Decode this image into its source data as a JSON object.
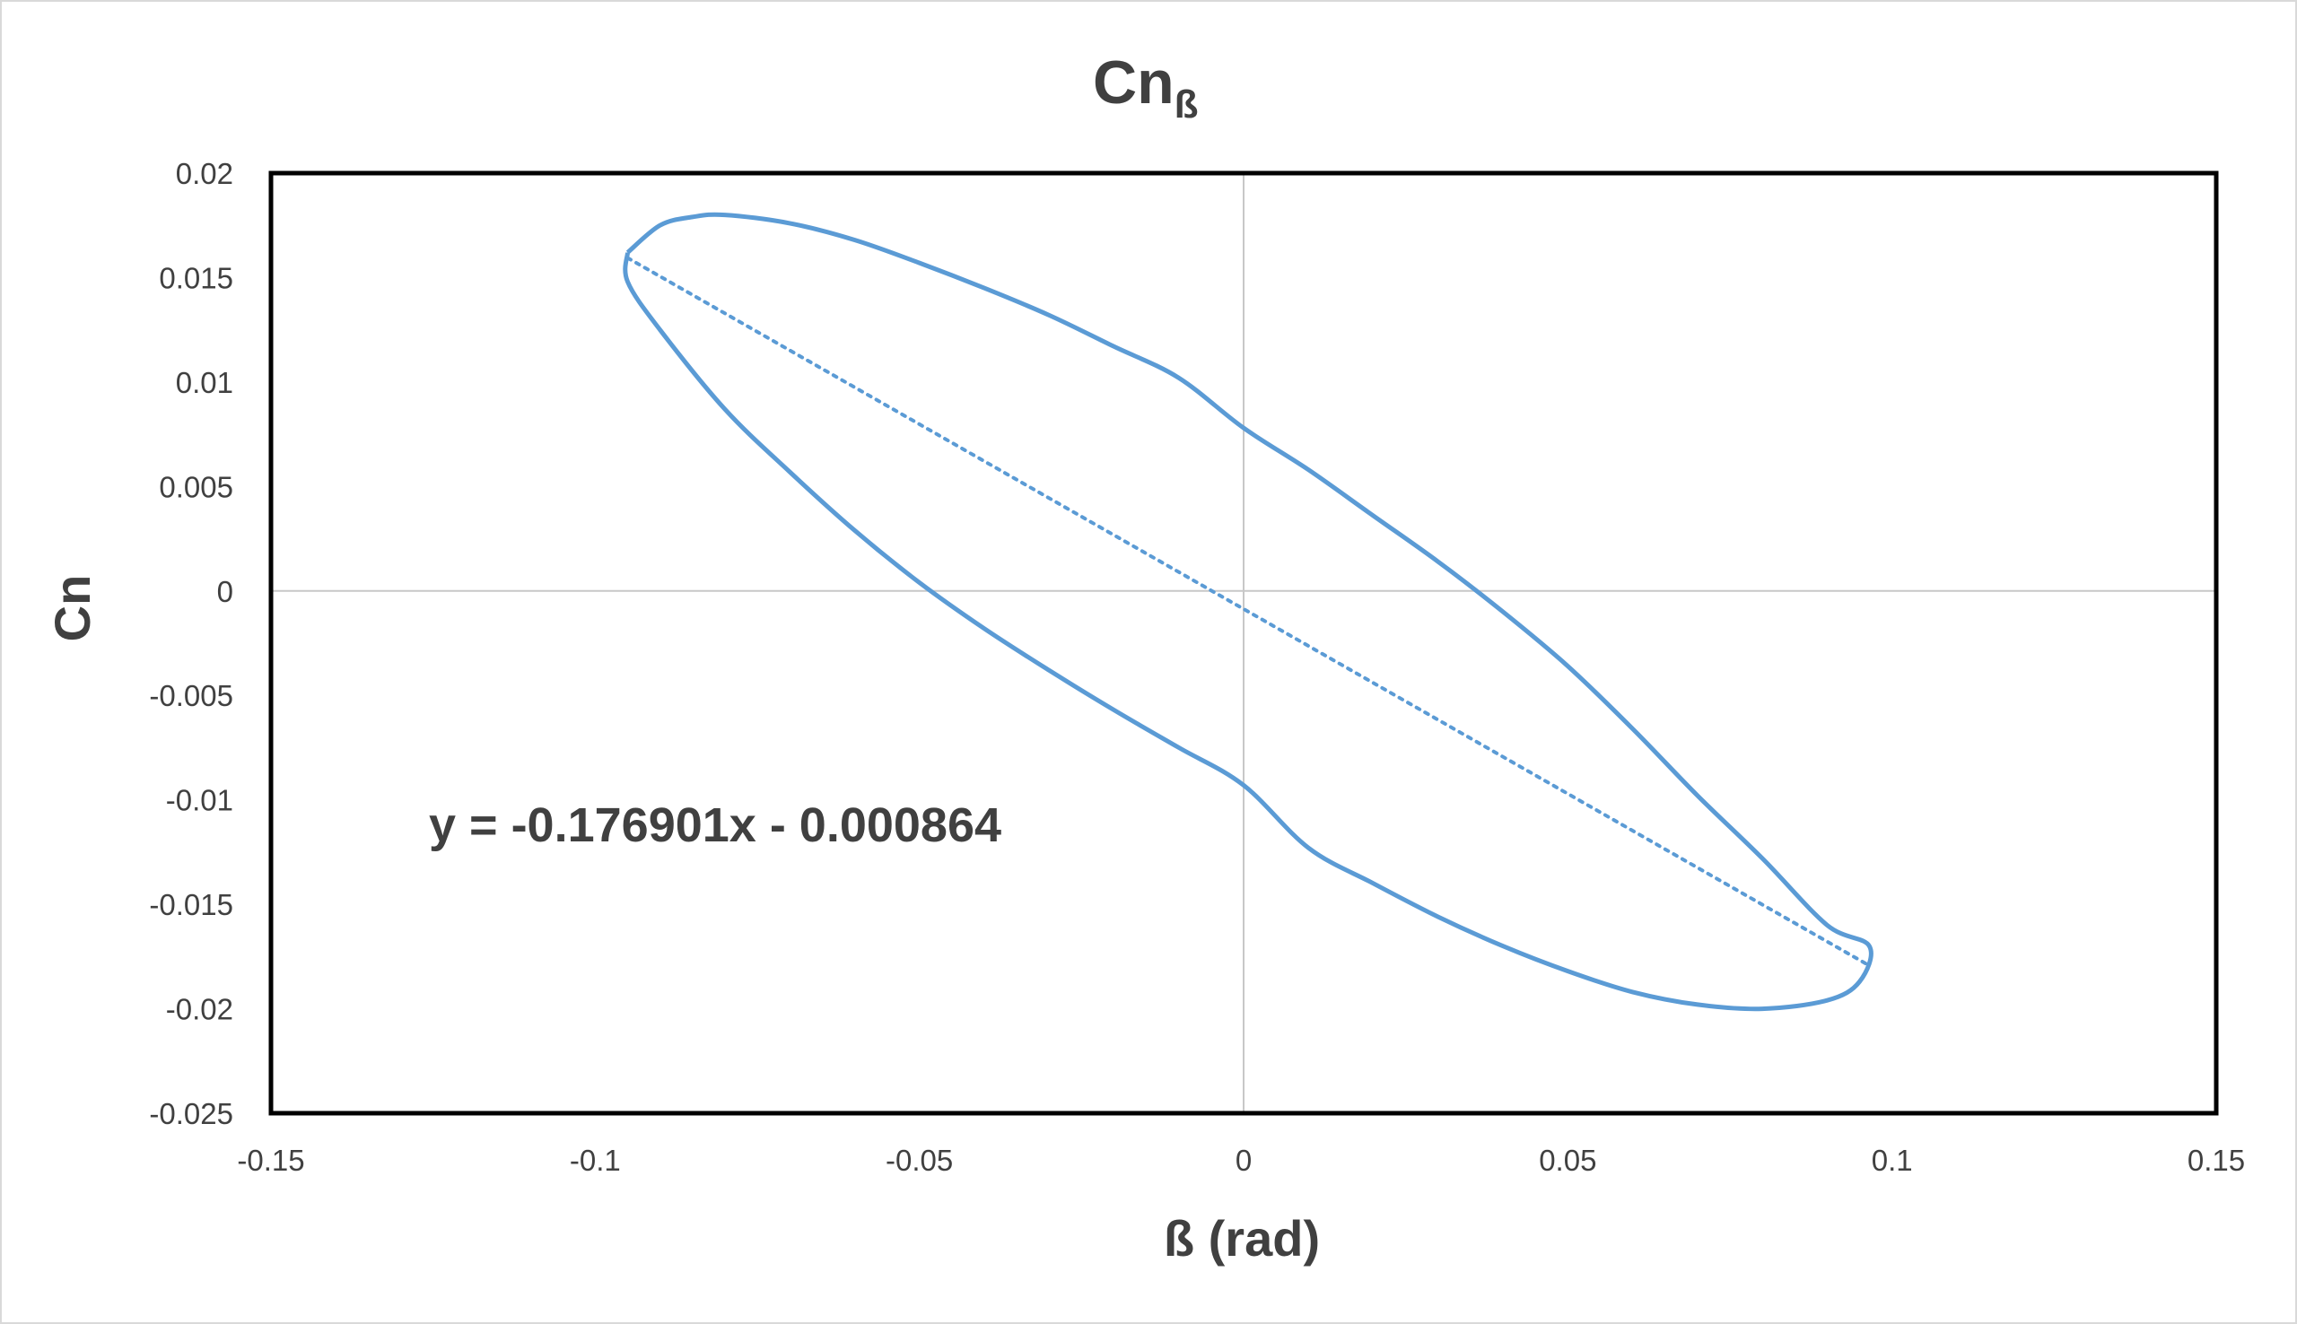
{
  "chart_data": {
    "type": "scatter",
    "title": "Cn",
    "title_subscript": "ß",
    "xlabel": "ß (rad)",
    "ylabel": "Cn",
    "xlim": [
      -0.15,
      0.15
    ],
    "ylim": [
      -0.025,
      0.02
    ],
    "x_ticks": [
      -0.15,
      -0.1,
      -0.05,
      0,
      0.05,
      0.1,
      0.15
    ],
    "y_ticks": [
      0.02,
      0.015,
      0.01,
      0.005,
      0,
      -0.005,
      -0.01,
      -0.015,
      -0.02,
      -0.025
    ],
    "x_tick_labels": [
      "-0.15",
      "-0.1",
      "-0.05",
      "0",
      "0.05",
      "0.1",
      "0.15"
    ],
    "y_tick_labels": [
      "0.02",
      "0.015",
      "0.01",
      "0.005",
      "0",
      "-0.005",
      "-0.01",
      "-0.015",
      "-0.02",
      "-0.025"
    ],
    "grid": false,
    "zero_lines": true,
    "series": [
      {
        "type": "line",
        "color": "#5b9bd5",
        "points": [
          [
            -0.095,
            0.0162
          ],
          [
            -0.09,
            0.0175
          ],
          [
            -0.085,
            0.0179
          ],
          [
            -0.08,
            0.018
          ],
          [
            -0.07,
            0.0176
          ],
          [
            -0.06,
            0.0168
          ],
          [
            -0.05,
            0.0157
          ],
          [
            -0.04,
            0.0145
          ],
          [
            -0.03,
            0.0132
          ],
          [
            -0.02,
            0.0117
          ],
          [
            -0.01,
            0.0102
          ],
          [
            0.0,
            0.0078
          ],
          [
            0.01,
            0.0058
          ],
          [
            0.02,
            0.0036
          ],
          [
            0.03,
            0.0014
          ],
          [
            0.04,
            -0.001
          ],
          [
            0.05,
            -0.0036
          ],
          [
            0.06,
            -0.0066
          ],
          [
            0.07,
            -0.0098
          ],
          [
            0.08,
            -0.0128
          ],
          [
            0.09,
            -0.016
          ],
          [
            0.0965,
            -0.017
          ],
          [
            0.095,
            -0.0187
          ],
          [
            0.09,
            -0.0196
          ],
          [
            0.08,
            -0.02
          ],
          [
            0.07,
            -0.0198
          ],
          [
            0.06,
            -0.0192
          ],
          [
            0.05,
            -0.0182
          ],
          [
            0.04,
            -0.017
          ],
          [
            0.03,
            -0.0156
          ],
          [
            0.02,
            -0.014
          ],
          [
            0.01,
            -0.0123
          ],
          [
            0.0,
            -0.0093
          ],
          [
            -0.01,
            -0.0075
          ],
          [
            -0.02,
            -0.0057
          ],
          [
            -0.03,
            -0.0038
          ],
          [
            -0.04,
            -0.0018
          ],
          [
            -0.05,
            0.0004
          ],
          [
            -0.06,
            0.0029
          ],
          [
            -0.07,
            0.0057
          ],
          [
            -0.08,
            0.0087
          ],
          [
            -0.09,
            0.0125
          ],
          [
            -0.095,
            0.0148
          ],
          [
            -0.095,
            0.0162
          ]
        ]
      }
    ],
    "trendline": {
      "slope": -0.176901,
      "intercept": -0.000864,
      "x_range": [
        -0.095,
        0.096
      ],
      "color": "#5b9bd5",
      "style": "dotted",
      "equation_label": "y = -0.176901x - 0.000864"
    }
  }
}
